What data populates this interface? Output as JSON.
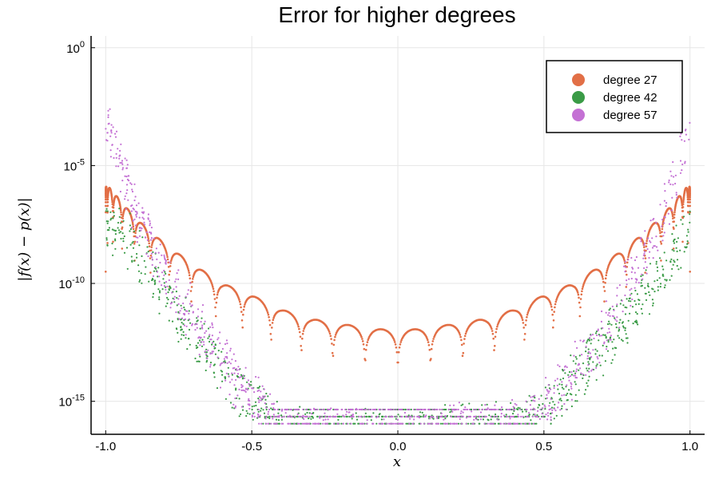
{
  "chart_data": {
    "type": "scatter",
    "title": "Error for higher degrees",
    "xlabel": "x",
    "ylabel": "|f(x) − p(x)|",
    "xlim": [
      -1.05,
      1.05
    ],
    "ylim_log10": [
      -16.4,
      0.5
    ],
    "yscale": "log10",
    "grid": true,
    "legend_position": "top-right",
    "xticks": [
      {
        "value": -1.0,
        "label": "-1.0"
      },
      {
        "value": -0.5,
        "label": "-0.5"
      },
      {
        "value": 0.0,
        "label": "0.0"
      },
      {
        "value": 0.5,
        "label": "0.5"
      },
      {
        "value": 1.0,
        "label": "1.0"
      }
    ],
    "yticks": [
      {
        "exp": 0,
        "base": "10",
        "sup": "0"
      },
      {
        "exp": -5,
        "base": "10",
        "sup": "-5"
      },
      {
        "exp": -10,
        "base": "10",
        "sup": "-10"
      },
      {
        "exp": -15,
        "base": "10",
        "sup": "-15"
      }
    ],
    "series": [
      {
        "name": "degree 27",
        "color": "#e26f46",
        "envelope_log10": [
          [
            -0.99,
            -5.9
          ],
          [
            -0.9,
            -7.2
          ],
          [
            -0.8,
            -8.3
          ],
          [
            -0.7,
            -9.2
          ],
          [
            -0.6,
            -10.0
          ],
          [
            -0.5,
            -10.5
          ],
          [
            -0.4,
            -11.1
          ],
          [
            -0.3,
            -11.5
          ],
          [
            -0.2,
            -11.7
          ],
          [
            -0.1,
            -11.9
          ],
          [
            0.0,
            -12.0
          ],
          [
            0.1,
            -11.9
          ],
          [
            0.2,
            -11.7
          ],
          [
            0.3,
            -11.5
          ],
          [
            0.4,
            -11.1
          ],
          [
            0.5,
            -10.5
          ],
          [
            0.6,
            -10.0
          ],
          [
            0.7,
            -9.2
          ],
          [
            0.8,
            -8.3
          ],
          [
            0.9,
            -7.2
          ],
          [
            0.99,
            -5.9
          ]
        ],
        "n_lobes": 28,
        "trough_log10": -13.5
      },
      {
        "name": "degree 42",
        "color": "#3a9b46",
        "envelope_log10": [
          [
            -1.0,
            -6.5
          ],
          [
            -0.9,
            -7.5
          ],
          [
            -0.8,
            -9.5
          ],
          [
            -0.7,
            -11.2
          ],
          [
            -0.6,
            -12.8
          ],
          [
            -0.5,
            -14.3
          ],
          [
            -0.4,
            -15.3
          ],
          [
            -0.3,
            -15.6
          ],
          [
            0.0,
            -15.6
          ],
          [
            0.4,
            -15.3
          ],
          [
            0.5,
            -14.8
          ],
          [
            0.6,
            -13.3
          ],
          [
            0.7,
            -11.8
          ],
          [
            0.8,
            -10.3
          ],
          [
            0.9,
            -8.7
          ],
          [
            1.0,
            -7.0
          ]
        ],
        "floor_log10": -15.5,
        "spread": 0.9
      },
      {
        "name": "degree 57",
        "color": "#c471d4",
        "envelope_log10": [
          [
            -1.0,
            -2.0
          ],
          [
            -0.95,
            -4.0
          ],
          [
            -0.9,
            -6.0
          ],
          [
            -0.8,
            -8.5
          ],
          [
            -0.7,
            -10.5
          ],
          [
            -0.6,
            -12.5
          ],
          [
            -0.5,
            -14.0
          ],
          [
            -0.4,
            -15.3
          ],
          [
            -0.35,
            -15.6
          ],
          [
            0.0,
            -15.6
          ],
          [
            0.4,
            -15.3
          ],
          [
            0.5,
            -14.3
          ],
          [
            0.6,
            -12.8
          ],
          [
            0.7,
            -11.2
          ],
          [
            0.8,
            -9.0
          ],
          [
            0.9,
            -6.5
          ],
          [
            0.95,
            -4.5
          ],
          [
            1.0,
            -2.8
          ]
        ],
        "floor_log10": -15.5,
        "spread": 0.9
      }
    ]
  }
}
